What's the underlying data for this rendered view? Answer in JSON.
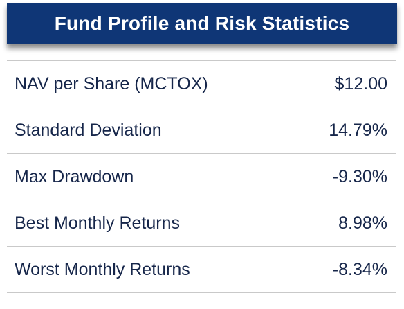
{
  "header": {
    "title": "Fund Profile and Risk Statistics"
  },
  "rows": [
    {
      "label": "NAV per Share (MCTOX)",
      "value": "$12.00"
    },
    {
      "label": "Standard Deviation",
      "value": "14.79%"
    },
    {
      "label": "Max Drawdown",
      "value": "-9.30%"
    },
    {
      "label": "Best Monthly Returns",
      "value": "8.98%"
    },
    {
      "label": "Worst Monthly Returns",
      "value": "-8.34%"
    }
  ],
  "colors": {
    "header_bg": "#0f3676",
    "header_text": "#ffffff",
    "body_text": "#16264a",
    "divider": "#c9c9c9"
  }
}
